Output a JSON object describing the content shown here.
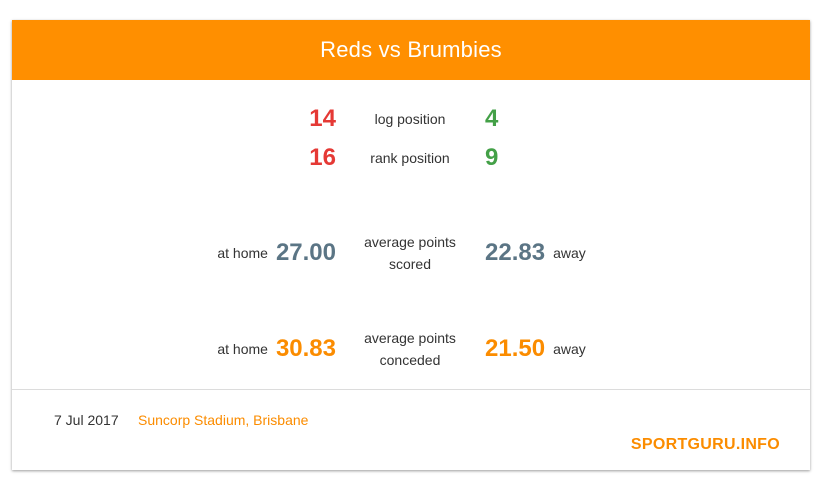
{
  "header": {
    "title": "Reds vs Brumbies"
  },
  "positions": [
    {
      "label": "log position",
      "home": "14",
      "away": "4"
    },
    {
      "label": "rank position",
      "home": "16",
      "away": "9"
    }
  ],
  "scored": {
    "label_line1": "average points",
    "label_line2": "scored",
    "home_label": "at home",
    "home_value": "27.00",
    "away_value": "22.83",
    "away_label": "away"
  },
  "conceded": {
    "label_line1": "average points",
    "label_line2": "conceded",
    "home_label": "at home",
    "home_value": "30.83",
    "away_value": "21.50",
    "away_label": "away"
  },
  "footer": {
    "date": "7 Jul 2017",
    "venue": "Suncorp Stadium, Brisbane",
    "brand": "SPORTGURU.INFO"
  },
  "colors": {
    "accent": "#ff8f00",
    "home_rank": "#e53935",
    "away_rank": "#43a047",
    "scored": "#5b7585",
    "conceded": "#fb8c00"
  }
}
